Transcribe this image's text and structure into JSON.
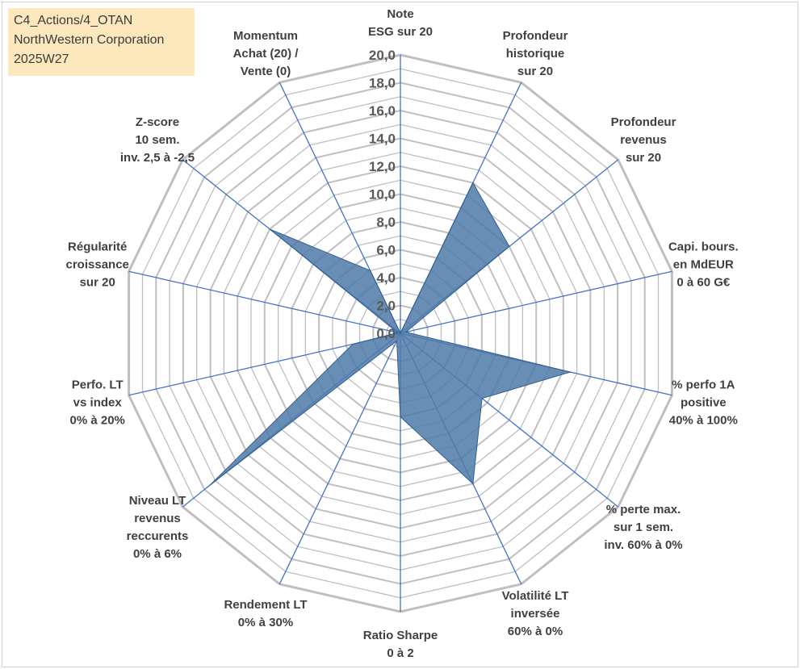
{
  "info": {
    "line1": "C4_Actions/4_OTAN",
    "line2": "NorthWestern Corporation",
    "line3": "2025W27"
  },
  "colors": {
    "fill": "#4f7aa8",
    "ring": "#bfbfbf",
    "spoke": "#4472c4",
    "infobox": "#fde8bd"
  },
  "chart_data": {
    "type": "radar",
    "rmax": 20,
    "ring_step": 1,
    "tick_labels": [
      "0,0",
      "2,0",
      "4,0",
      "6,0",
      "8,0",
      "10,0",
      "12,0",
      "14,0",
      "16,0",
      "18,0",
      "20,0"
    ],
    "axes": [
      {
        "label": [
          "Note",
          "ESG sur 20"
        ],
        "value": 0
      },
      {
        "label": [
          "Profondeur",
          "historique",
          "sur 20"
        ],
        "value": 12
      },
      {
        "label": [
          "Profondeur",
          "revenus",
          "sur 20"
        ],
        "value": 10
      },
      {
        "label": [
          "Capi. bours.",
          "en MdEUR",
          "0 à 60 G€"
        ],
        "value": 0.4
      },
      {
        "label": [
          "% perfo 1A",
          "positive",
          "40% à 100%"
        ],
        "value": 12.5
      },
      {
        "label": [
          "% perte max.",
          "sur 1 sem.",
          "inv. 60% à 0%"
        ],
        "value": 7.5
      },
      {
        "label": [
          "Volatilité LT",
          "inversée",
          "60% à 0%"
        ],
        "value": 12
      },
      {
        "label": [
          "Ratio Sharpe",
          "0 à 2"
        ],
        "value": 6
      },
      {
        "label": [
          "Rendement LT",
          "0% à 30%"
        ],
        "value": 0.6
      },
      {
        "label": [
          "Niveau LT",
          "revenus",
          "reccurents",
          "0% à 6%"
        ],
        "value": 17.5
      },
      {
        "label": [
          "Perfo. LT",
          "vs index",
          "0% à 20%"
        ],
        "value": 3.5
      },
      {
        "label": [
          "Régularité",
          "croissance",
          "sur 20"
        ],
        "value": 0.2
      },
      {
        "label": [
          "Z-score",
          "10 sem.",
          "inv. 2,5 à -2,5"
        ],
        "value": 12
      },
      {
        "label": [
          "Momentum",
          "Achat (20) /",
          "Vente (0)"
        ],
        "value": 5
      }
    ]
  }
}
